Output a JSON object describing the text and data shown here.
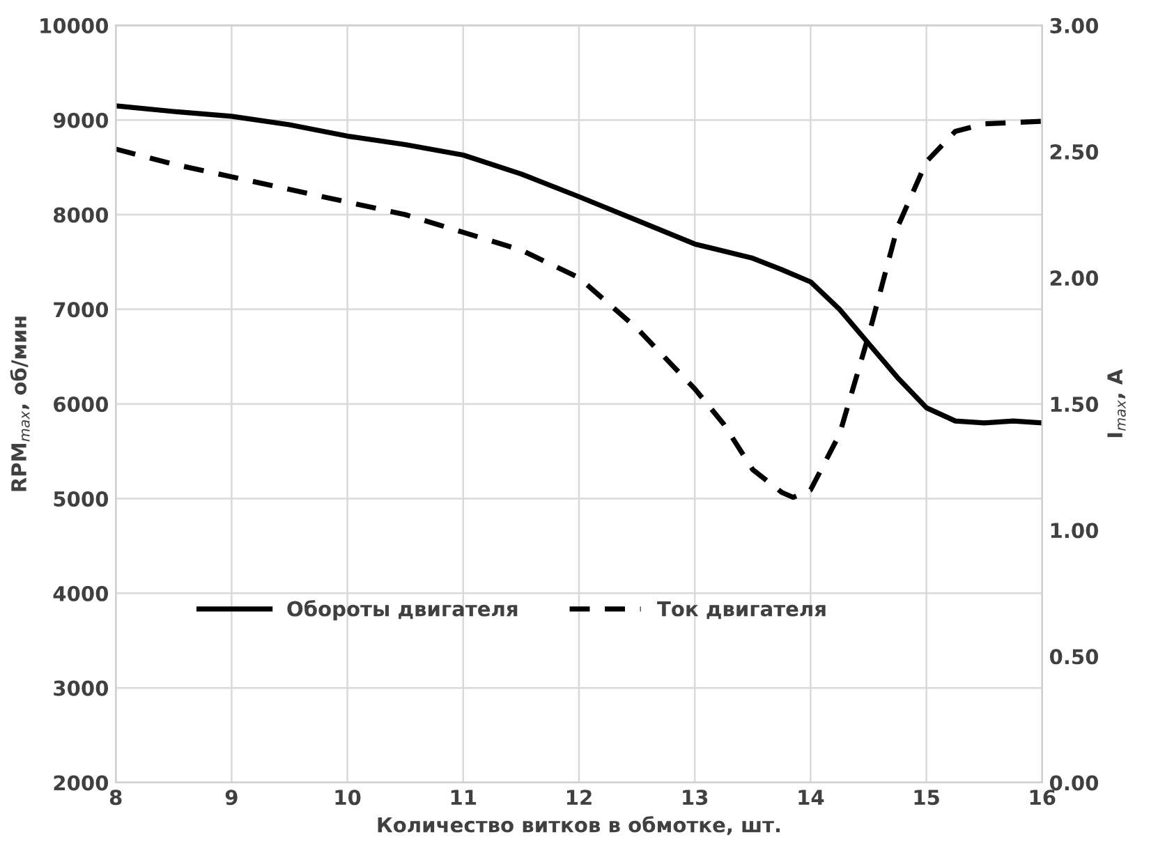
{
  "chart_data": {
    "type": "line",
    "xlabel": "Количество витков в обмотке, шт.",
    "ylabel": "RPM$_{max}$, об/мин",
    "y2label": "I$_{max}$, A",
    "series": [
      {
        "name": "Обороты двигателя",
        "color": "#000000",
        "line_style": "solid",
        "x": [
          8,
          8.5,
          9,
          9.5,
          10,
          10.5,
          11,
          11.5,
          12,
          12.5,
          13,
          13.5,
          13.75,
          14,
          14.25,
          14.5,
          14.75,
          15,
          15.25,
          15.5,
          15.75,
          16
        ],
        "values": [
          9150,
          9090,
          9040,
          8950,
          8830,
          8740,
          8630,
          8430,
          8190,
          7940,
          7690,
          7540,
          7420,
          7290,
          7000,
          6640,
          6280,
          5960,
          5820,
          5800,
          5820,
          5800
        ]
      },
      {
        "name": "Ток двигателя",
        "color": "#000000",
        "line_style": "dashed",
        "axis": "y2",
        "x": [
          8,
          8.5,
          9,
          9.5,
          10,
          10.5,
          11,
          11.5,
          12,
          12.5,
          13,
          13.25,
          13.5,
          13.75,
          13.85,
          14,
          14.25,
          14.5,
          14.75,
          15,
          15.25,
          15.5,
          16
        ],
        "values": [
          2.51,
          2.45,
          2.4,
          2.35,
          2.3,
          2.25,
          2.18,
          2.11,
          2.0,
          1.8,
          1.56,
          1.42,
          1.24,
          1.15,
          1.13,
          1.16,
          1.38,
          1.77,
          2.2,
          2.46,
          2.58,
          2.61,
          2.62
        ]
      }
    ],
    "xlim": [
      8,
      16
    ],
    "xticks": [
      8,
      9,
      10,
      11,
      12,
      13,
      14,
      15,
      16
    ],
    "ylim": [
      2000,
      10000
    ],
    "yticks": [
      2000,
      3000,
      4000,
      5000,
      6000,
      7000,
      8000,
      9000,
      10000
    ],
    "y2lim": [
      0,
      3
    ],
    "y2ticks": [
      {
        "value": 0,
        "label": "0.00"
      },
      {
        "value": 0.5,
        "label": "0.50"
      },
      {
        "value": 1,
        "label": "1.00"
      },
      {
        "value": 1.5,
        "label": "1.50"
      },
      {
        "value": 2,
        "label": "2.00"
      },
      {
        "value": 2.5,
        "label": "2.50"
      },
      {
        "value": 3,
        "label": "3.00"
      }
    ],
    "grid": true,
    "legend": "bottom left",
    "marker": "none"
  }
}
